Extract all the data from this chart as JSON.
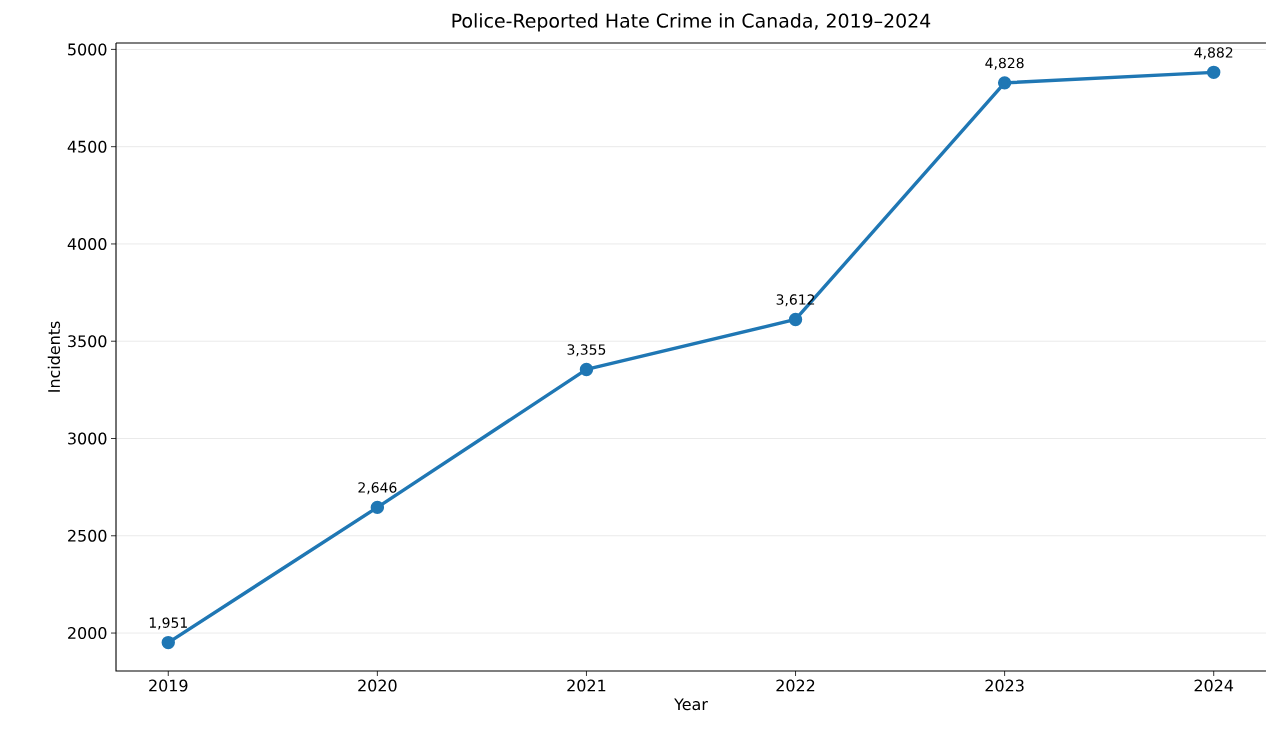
{
  "chart_data": {
    "type": "line",
    "title": "Police-Reported Hate Crime in Canada, 2019–2024",
    "xlabel": "Year",
    "ylabel": "Incidents",
    "categories": [
      "2019",
      "2020",
      "2021",
      "2022",
      "2023",
      "2024"
    ],
    "series": [
      {
        "color": "#1f77b4",
        "values": [
          1951,
          2646,
          3355,
          3612,
          4828,
          4882
        ],
        "value_labels": [
          "1,951",
          "2,646",
          "3,355",
          "3,612",
          "4,828",
          "4,882"
        ]
      }
    ],
    "ylim": [
      1805,
      5033
    ],
    "yticks": [
      2000,
      2500,
      3000,
      3500,
      4000,
      4500,
      5000
    ],
    "grid": "y",
    "marker": "circle",
    "line_style": "solid"
  }
}
